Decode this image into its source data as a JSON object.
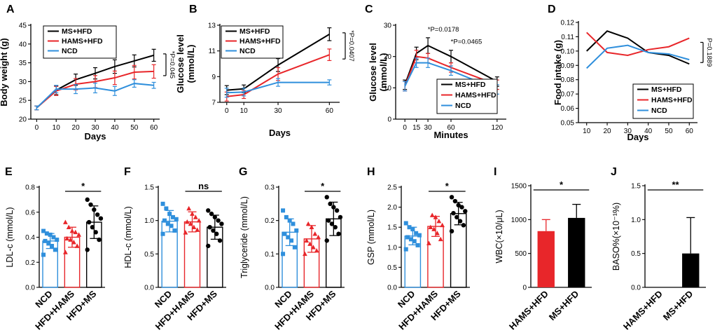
{
  "colors": {
    "MS+HFD": "#000000",
    "HAMS+HFD": "#e8262a",
    "NCD": "#2f8fdc"
  },
  "sig_marks": [
    "*",
    "ns",
    "**"
  ],
  "chart_data": [
    {
      "id": "A",
      "type": "line",
      "panel_label": "A",
      "ylabel": "Body weight (g)",
      "xlabel": "Days",
      "x": [
        0,
        10,
        20,
        30,
        40,
        50,
        60
      ],
      "xticks": [
        "0",
        "10",
        "20",
        "30",
        "40",
        "50",
        "60"
      ],
      "ylim": [
        20,
        45
      ],
      "yticks": [
        20,
        25,
        30,
        35,
        40,
        45
      ],
      "series": [
        {
          "name": "MS+HFD",
          "values": [
            23,
            27.7,
            30.5,
            32.2,
            34,
            35.5,
            37
          ],
          "err": [
            0.5,
            1.2,
            1.5,
            1.5,
            1.8,
            1.6,
            1.6
          ]
        },
        {
          "name": "HAMS+HFD",
          "values": [
            23,
            27.5,
            29.3,
            30,
            31,
            32.5,
            32.7
          ],
          "err": [
            0.5,
            1.2,
            1.5,
            1.6,
            1.8,
            1.8,
            1.8
          ]
        },
        {
          "name": "NCD",
          "values": [
            23,
            28,
            28,
            28.3,
            27.5,
            29.5,
            29
          ],
          "err": [
            0.5,
            1.0,
            1.2,
            1.3,
            1.2,
            1.0,
            0.8
          ]
        }
      ],
      "legend": [
        "MS+HFD",
        "HAMS+HFD",
        "NCD"
      ],
      "annotation": "*P=0.045"
    },
    {
      "id": "B",
      "type": "line",
      "panel_label": "B",
      "ylabel": "Glucose level (mmol/L)",
      "ylabel_lines": [
        "Glucose level",
        "(mmol/L)"
      ],
      "xlabel": "Days",
      "x": [
        0,
        10,
        30,
        60
      ],
      "xticks": [
        "0",
        "10",
        "30",
        "60"
      ],
      "ylim": [
        7,
        13
      ],
      "yticks": [
        7,
        9,
        11,
        13
      ],
      "series": [
        {
          "name": "MS+HFD",
          "values": [
            7.95,
            8.05,
            9.9,
            12.3
          ],
          "err": [
            0.35,
            0.3,
            0.5,
            0.5
          ]
        },
        {
          "name": "HAMS+HFD",
          "values": [
            7.45,
            7.6,
            9.2,
            10.7
          ],
          "err": [
            0.35,
            0.3,
            0.5,
            0.45
          ]
        },
        {
          "name": "NCD",
          "values": [
            7.75,
            7.8,
            8.55,
            8.55
          ],
          "err": [
            0.35,
            0.3,
            0.3,
            0.2
          ]
        }
      ],
      "legend": [
        "MS+HFD",
        "HAMS+HFD",
        "NCD"
      ],
      "annotation": "*P=0.0407"
    },
    {
      "id": "C",
      "type": "line",
      "panel_label": "C",
      "ylabel": "Glucose level (mmol/L)",
      "ylabel_lines": [
        "Glucose level",
        "(mmol/L)"
      ],
      "xlabel": "Minutes",
      "x": [
        0,
        15,
        30,
        60,
        120
      ],
      "xticks": [
        "0",
        "15",
        "30",
        "60",
        "120"
      ],
      "ylim": [
        0,
        30
      ],
      "yticks": [
        0,
        10,
        20,
        30
      ],
      "series": [
        {
          "name": "MS+HFD",
          "values": [
            11,
            21,
            23.5,
            20,
            12
          ],
          "err": [
            1.5,
            2,
            2.5,
            2,
            1.5
          ]
        },
        {
          "name": "HAMS+HFD",
          "values": [
            10.5,
            20,
            19.5,
            16.5,
            11
          ],
          "err": [
            1.5,
            2,
            1.5,
            1.5,
            1.5
          ]
        },
        {
          "name": "NCD",
          "values": [
            10.5,
            18,
            18,
            15.5,
            9.5
          ],
          "err": [
            1.5,
            1.5,
            1.5,
            1.5,
            1.5
          ]
        }
      ],
      "legend": [
        "MS+HFD",
        "HAMS+HFD",
        "NCD"
      ],
      "annotations": [
        "*P=0.0178",
        "*P=0.0465"
      ]
    },
    {
      "id": "D",
      "type": "line",
      "panel_label": "D",
      "ylabel": "Food intake (g)",
      "xlabel": "Days",
      "x": [
        10,
        20,
        30,
        40,
        50,
        60
      ],
      "xticks": [
        "10",
        "20",
        "30",
        "40",
        "50",
        "60"
      ],
      "ylim": [
        0.05,
        0.12
      ],
      "yticks": [
        "0.05",
        "0.06",
        "0.07",
        "0.08",
        "0.09",
        "0.10",
        "0.11",
        "0.12"
      ],
      "series": [
        {
          "name": "MS+HFD",
          "values": [
            0.1,
            0.114,
            0.109,
            0.099,
            0.097,
            0.091
          ]
        },
        {
          "name": "HAMS+HFD",
          "values": [
            0.113,
            0.099,
            0.097,
            0.101,
            0.103,
            0.109
          ]
        },
        {
          "name": "NCD",
          "values": [
            0.088,
            0.102,
            0.104,
            0.099,
            0.098,
            0.094
          ]
        }
      ],
      "legend": [
        "MS+HFD",
        "HAMS+HFD",
        "NCD"
      ],
      "annotation": "P=0.1889"
    },
    {
      "id": "E",
      "type": "bar",
      "panel_label": "E",
      "ylabel": "LDL-c (mmol/L)",
      "categories": [
        "NCD",
        "HFD+HAMS",
        "HFD+MS"
      ],
      "values": [
        0.37,
        0.4,
        0.52
      ],
      "err": [
        0.06,
        0.08,
        0.13
      ],
      "points": [
        [
          0.26,
          0.3,
          0.33,
          0.35,
          0.37,
          0.38,
          0.4,
          0.42,
          0.43,
          0.45
        ],
        [
          0.28,
          0.33,
          0.36,
          0.38,
          0.39,
          0.42,
          0.44,
          0.45,
          0.48,
          0.52
        ],
        [
          0.3,
          0.38,
          0.44,
          0.48,
          0.52,
          0.55,
          0.58,
          0.62,
          0.66,
          0.7
        ]
      ],
      "ylim": [
        0,
        0.8
      ],
      "yticks": [
        "0.0",
        "0.2",
        "0.4",
        "0.6",
        "0.8"
      ],
      "significance": {
        "between": [
          1,
          2
        ],
        "label": "*"
      }
    },
    {
      "id": "F",
      "type": "bar",
      "panel_label": "F",
      "ylabel": "HDL-c (mmol/L)",
      "categories": [
        "NCD",
        "HFD+HAMS",
        "HFD+MS"
      ],
      "values": [
        0.99,
        0.98,
        0.9
      ],
      "err": [
        0.16,
        0.15,
        0.18
      ],
      "points": [
        [
          0.8,
          0.85,
          0.92,
          0.95,
          1.0,
          1.02,
          1.05,
          1.1,
          1.18,
          1.25
        ],
        [
          0.82,
          0.86,
          0.9,
          0.95,
          0.98,
          1.0,
          1.05,
          1.1,
          1.18
        ],
        [
          0.62,
          0.7,
          0.8,
          0.85,
          0.9,
          0.95,
          1.0,
          1.05,
          1.1,
          1.15
        ]
      ],
      "ylim": [
        0,
        1.5
      ],
      "yticks": [
        "0.0",
        "0.5",
        "1.0",
        "1.5"
      ],
      "significance": {
        "between": [
          1,
          2
        ],
        "label": "ns"
      }
    },
    {
      "id": "G",
      "type": "bar",
      "panel_label": "G",
      "ylabel": "Triglyceride (mmol/L)",
      "categories": [
        "NCD",
        "HFD+HAMS",
        "HFD+MS"
      ],
      "values": [
        0.165,
        0.145,
        0.205
      ],
      "err": [
        0.04,
        0.04,
        0.05
      ],
      "points": [
        [
          0.1,
          0.12,
          0.14,
          0.15,
          0.16,
          0.17,
          0.19,
          0.2,
          0.21,
          0.23
        ],
        [
          0.1,
          0.11,
          0.12,
          0.13,
          0.14,
          0.15,
          0.16,
          0.18,
          0.19
        ],
        [
          0.14,
          0.16,
          0.18,
          0.19,
          0.2,
          0.21,
          0.23,
          0.24,
          0.25,
          0.27
        ]
      ],
      "ylim": [
        0,
        0.3
      ],
      "yticks": [
        "0.0",
        "0.1",
        "0.2",
        "0.3"
      ],
      "significance": {
        "between": [
          1,
          2
        ],
        "label": "*"
      }
    },
    {
      "id": "H",
      "type": "bar",
      "panel_label": "H",
      "ylabel": "GSP (mmol/L)",
      "categories": [
        "NCD",
        "HFD+HAMS",
        "HFD+MS"
      ],
      "values": [
        1.28,
        1.52,
        1.84
      ],
      "err": [
        0.22,
        0.25,
        0.28
      ],
      "points": [
        [
          0.95,
          1.05,
          1.15,
          1.2,
          1.25,
          1.3,
          1.35,
          1.45,
          1.5,
          1.6
        ],
        [
          1.1,
          1.2,
          1.35,
          1.45,
          1.5,
          1.55,
          1.65,
          1.75,
          1.8
        ],
        [
          1.4,
          1.55,
          1.65,
          1.75,
          1.85,
          1.9,
          2.0,
          2.05,
          2.15,
          2.25
        ]
      ],
      "ylim": [
        0,
        2.5
      ],
      "yticks": [
        "0.0",
        "0.5",
        "1.0",
        "1.5",
        "2.0",
        "2.5"
      ],
      "significance": {
        "between": [
          1,
          2
        ],
        "label": "*"
      }
    },
    {
      "id": "I",
      "type": "bar",
      "panel_label": "I",
      "ylabel": "WBC(×10/μL)",
      "categories": [
        "HAMS+HFD",
        "MS+HFD"
      ],
      "values": [
        830,
        1025
      ],
      "err": [
        170,
        200
      ],
      "ylim": [
        0,
        1500
      ],
      "yticks": [
        "0",
        "500",
        "1000",
        "1500"
      ],
      "significance": {
        "between": [
          0,
          1
        ],
        "label": "*"
      }
    },
    {
      "id": "J",
      "type": "bar",
      "panel_label": "J",
      "ylabel": "BASO%(×10⁻¹%)",
      "categories": [
        "HAMS+HFD",
        "MS+HFD"
      ],
      "values": [
        0.0,
        0.5
      ],
      "err": [
        0.0,
        0.53
      ],
      "ylim": [
        0,
        1.5
      ],
      "yticks": [
        "0.0",
        "0.5",
        "1.0",
        "1.5"
      ],
      "significance": {
        "between": [
          0,
          1
        ],
        "label": "**"
      }
    }
  ]
}
